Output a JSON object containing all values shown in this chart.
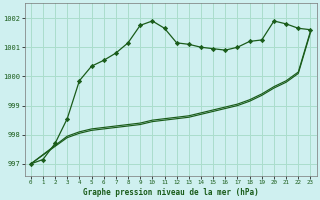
{
  "title": "Graphe pression niveau de la mer (hPa)",
  "background_color": "#cff0f0",
  "grid_color": "#aaddcc",
  "line_color": "#1a5c1a",
  "marker_color": "#1a5c1a",
  "xlim": [
    -0.5,
    23.5
  ],
  "ylim": [
    996.6,
    1002.5
  ],
  "yticks": [
    997,
    998,
    999,
    1000,
    1001,
    1002
  ],
  "xticks": [
    0,
    1,
    2,
    3,
    4,
    5,
    6,
    7,
    8,
    9,
    10,
    11,
    12,
    13,
    14,
    15,
    16,
    17,
    18,
    19,
    20,
    21,
    22,
    23
  ],
  "series_wavy_x": [
    0,
    1,
    2,
    3,
    4,
    5,
    6,
    7,
    8,
    9,
    10,
    11,
    12,
    13,
    14,
    15,
    16,
    17,
    18,
    19,
    20,
    21,
    22,
    23
  ],
  "series_wavy_y": [
    997.0,
    997.15,
    997.7,
    998.55,
    999.85,
    1000.35,
    1000.55,
    1000.8,
    1001.15,
    1001.75,
    1001.9,
    1001.65,
    1001.15,
    1001.1,
    1001.0,
    1000.95,
    1000.9,
    1001.0,
    1001.2,
    1001.25,
    1001.9,
    1001.8,
    1001.65,
    1001.6
  ],
  "series_diag1_x": [
    0,
    3,
    4,
    5,
    6,
    7,
    8,
    9,
    10,
    11,
    12,
    13,
    14,
    15,
    16,
    17,
    18,
    19,
    20,
    21,
    22,
    23
  ],
  "series_diag1_y": [
    997.0,
    997.95,
    998.1,
    998.2,
    998.25,
    998.3,
    998.35,
    998.4,
    998.5,
    998.55,
    998.6,
    998.65,
    998.75,
    998.85,
    998.95,
    999.05,
    999.2,
    999.4,
    999.65,
    999.85,
    1000.15,
    1001.55
  ],
  "series_diag2_x": [
    0,
    3,
    4,
    5,
    6,
    7,
    8,
    9,
    10,
    11,
    12,
    13,
    14,
    15,
    16,
    17,
    18,
    19,
    20,
    21,
    22,
    23
  ],
  "series_diag2_y": [
    997.0,
    997.9,
    998.05,
    998.15,
    998.2,
    998.25,
    998.3,
    998.35,
    998.45,
    998.5,
    998.55,
    998.6,
    998.7,
    998.8,
    998.9,
    999.0,
    999.15,
    999.35,
    999.6,
    999.8,
    1000.1,
    1001.5
  ]
}
